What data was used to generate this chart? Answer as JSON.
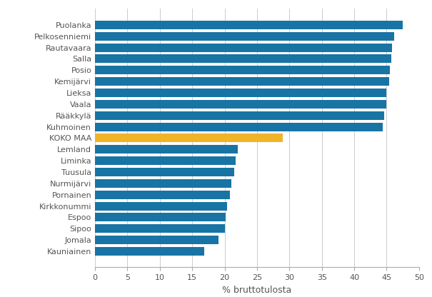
{
  "categories": [
    "Puolanka",
    "Pelkosenniemi",
    "Rautavaara",
    "Salla",
    "Posio",
    "Kemijärvi",
    "Lieksa",
    "Vaala",
    "Rääkkylä",
    "Kuhmoinen",
    "KOKO MAA",
    "Lemland",
    "Liminka",
    "Tuusula",
    "Nurmijärvi",
    "Pornainen",
    "Kirkkonummi",
    "Espoo",
    "Sipoo",
    "Jomala",
    "Kauniainen"
  ],
  "values": [
    47.5,
    46.2,
    45.8,
    45.7,
    45.5,
    45.4,
    45.0,
    44.9,
    44.6,
    44.4,
    29.0,
    22.0,
    21.7,
    21.5,
    21.0,
    20.8,
    20.4,
    20.2,
    20.0,
    19.0,
    16.8
  ],
  "bar_colors": [
    "#1874a4",
    "#1874a4",
    "#1874a4",
    "#1874a4",
    "#1874a4",
    "#1874a4",
    "#1874a4",
    "#1874a4",
    "#1874a4",
    "#1874a4",
    "#f0b429",
    "#1874a4",
    "#1874a4",
    "#1874a4",
    "#1874a4",
    "#1874a4",
    "#1874a4",
    "#1874a4",
    "#1874a4",
    "#1874a4",
    "#1874a4"
  ],
  "xlabel": "% bruttotulosta",
  "xlim": [
    0,
    50
  ],
  "xticks": [
    0,
    5,
    10,
    15,
    20,
    25,
    30,
    35,
    40,
    45,
    50
  ],
  "background_color": "#ffffff",
  "grid_color": "#cccccc",
  "bar_height": 0.75,
  "label_fontsize": 8.0,
  "xlabel_fontsize": 9.0
}
